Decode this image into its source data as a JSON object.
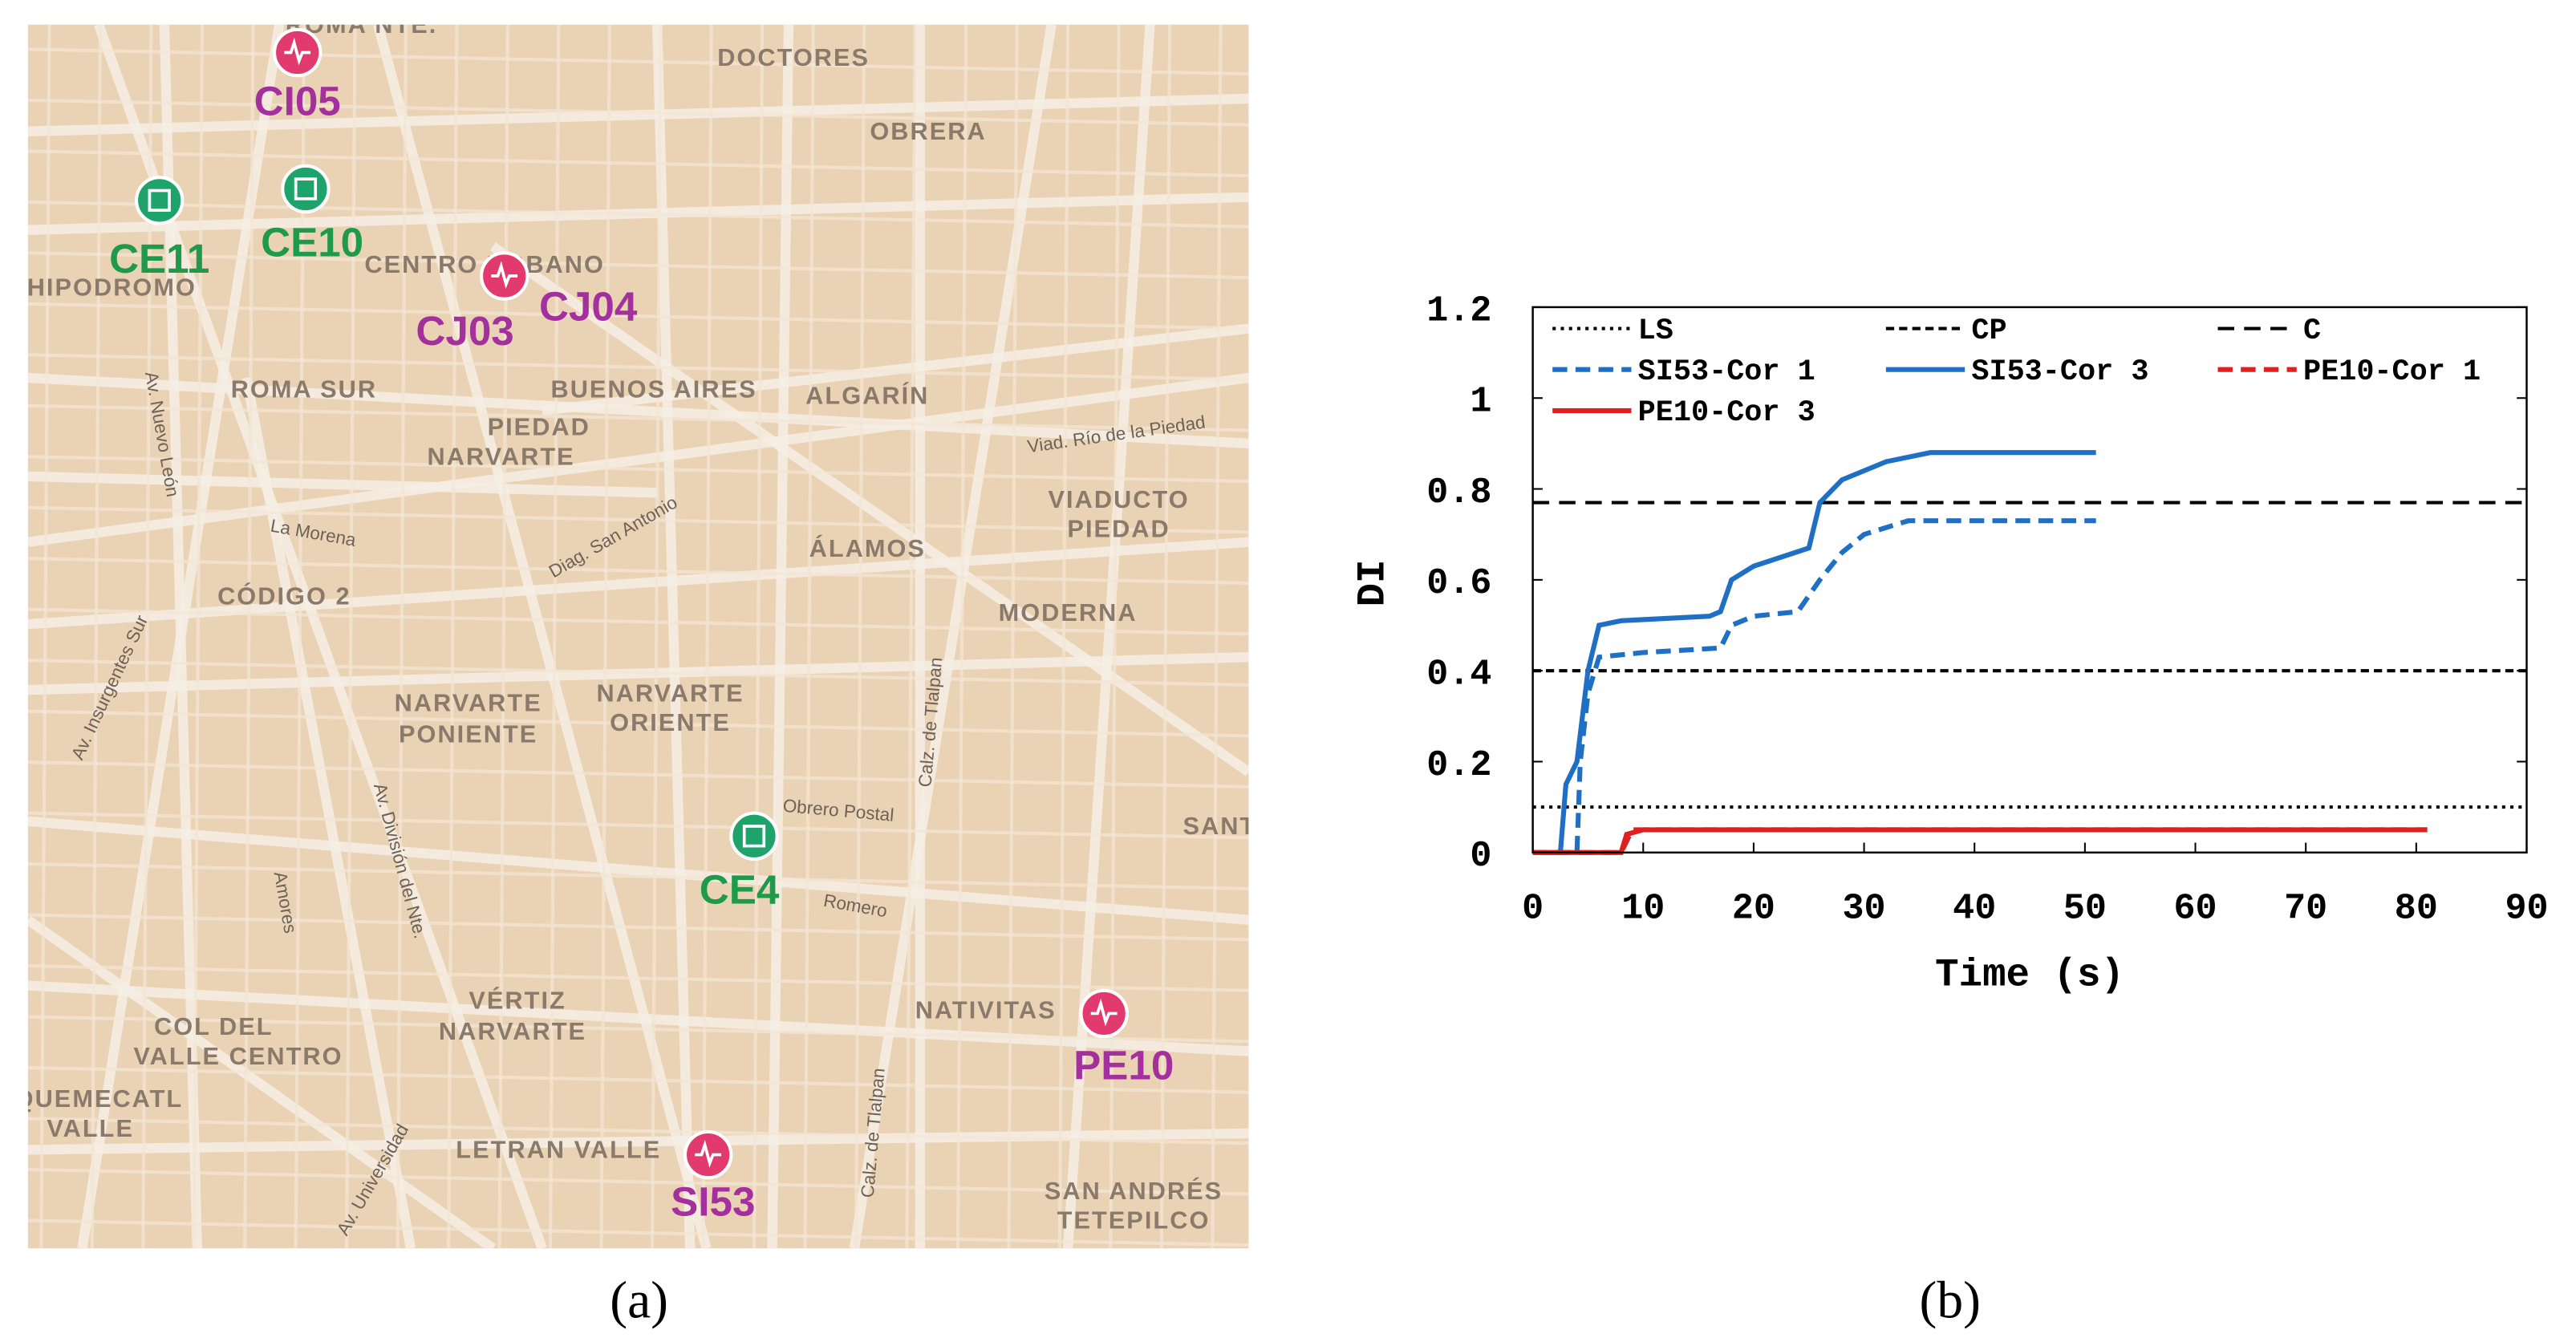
{
  "map": {
    "areas": [
      "ROMA NTE.",
      "DOCTORES",
      "OBRERA",
      "HIPODROMO",
      "CENTRO URBANO",
      "ROMA SUR",
      "BUENOS AIRES",
      "ALGARÍN",
      "PIEDAD",
      "NARVARTE",
      "VIADUCTO",
      "PIEDAD",
      "ÁLAMOS",
      "CÓDIGO 2",
      "MODERNA",
      "NARVARTE",
      "PONIENTE",
      "NARVARTE",
      "ORIENTE",
      "VÉRTIZ",
      "NARVARTE",
      "NATIVITAS",
      "COL DEL",
      "VALLE CENTRO",
      "LETRAN VALLE",
      "SAN ANDRÉS",
      "TETEPILCO",
      "SANTI",
      "QUEMECATL",
      "VALLE"
    ],
    "streets": [
      "Av. Insurgentes Sur",
      "Calz. de Tlalpan",
      "Viad. Río de la Piedad",
      "Diag. San Antonio",
      "La Morena",
      "Av. Universidad",
      "Av. División del Nte.",
      "Amores",
      "Romero",
      "Obrero Postal",
      "Av. Nuevo León",
      "Calz. de Tlalpan"
    ],
    "stations": [
      {
        "label": "CI05",
        "color": "#a3309c",
        "marker_color": "#e23a6e"
      },
      {
        "label": "CE11",
        "color": "#1e9a4a",
        "marker_color": "#1ea36a"
      },
      {
        "label": "CE10",
        "color": "#1e9a4a",
        "marker_color": "#1ea36a"
      },
      {
        "label": "CJ03",
        "color": "#a3309c",
        "marker_color": "#e23a6e"
      },
      {
        "label": "CJ04",
        "color": "#a3309c",
        "marker_color": "#e23a6e"
      },
      {
        "label": "CE4",
        "color": "#1e9a4a",
        "marker_color": "#1ea36a"
      },
      {
        "label": "PE10",
        "color": "#a3309c",
        "marker_color": "#e23a6e"
      },
      {
        "label": "SI53",
        "color": "#a3309c",
        "marker_color": "#e23a6e"
      }
    ]
  },
  "chart_data": {
    "type": "line",
    "xlabel": "Time (s)",
    "ylabel": "DI",
    "xlim": [
      0,
      90
    ],
    "xticks": [
      0,
      10,
      20,
      30,
      40,
      50,
      60,
      70,
      80,
      90
    ],
    "ylim": [
      0,
      1.2
    ],
    "yticks": [
      0,
      0.2,
      0.4,
      0.6,
      0.8,
      1,
      1.2
    ],
    "series": [
      {
        "name": "LS",
        "color": "#000000",
        "line_style": "dotted",
        "x": [
          0,
          90
        ],
        "values": [
          0.1,
          0.1
        ]
      },
      {
        "name": "CP",
        "color": "#000000",
        "line_style": "dashed",
        "x": [
          0,
          90
        ],
        "values": [
          0.4,
          0.4
        ]
      },
      {
        "name": "C",
        "color": "#000000",
        "line_style": "long-dashed",
        "x": [
          0,
          90
        ],
        "values": [
          0.77,
          0.77
        ]
      },
      {
        "name": "SI53-Cor 1",
        "color": "#1f6fc5",
        "line_style": "thick-dashed",
        "x": [
          0,
          4,
          4.3,
          5,
          6,
          10,
          17,
          18,
          20,
          24,
          26,
          28,
          30,
          34,
          51
        ],
        "values": [
          0,
          0,
          0.2,
          0.35,
          0.43,
          0.44,
          0.45,
          0.5,
          0.52,
          0.53,
          0.6,
          0.66,
          0.7,
          0.73,
          0.73
        ]
      },
      {
        "name": "SI53-Cor 3",
        "color": "#1f6fc5",
        "line_style": "solid",
        "x": [
          0,
          2.5,
          3,
          4,
          5,
          6,
          8,
          16,
          17,
          18,
          20,
          25,
          26,
          28,
          32,
          36,
          51
        ],
        "values": [
          0,
          0,
          0.15,
          0.2,
          0.4,
          0.5,
          0.51,
          0.52,
          0.53,
          0.6,
          0.63,
          0.67,
          0.77,
          0.82,
          0.86,
          0.88,
          0.88
        ]
      },
      {
        "name": "PE10-Cor 1",
        "color": "#e02020",
        "line_style": "thick-dashed",
        "x": [
          0,
          8,
          9,
          81
        ],
        "values": [
          0,
          0,
          0.05,
          0.05
        ]
      },
      {
        "name": "PE10-Cor 3",
        "color": "#e02020",
        "line_style": "solid",
        "x": [
          0,
          8,
          8.5,
          10,
          81
        ],
        "values": [
          0,
          0,
          0.04,
          0.05,
          0.05
        ]
      }
    ]
  },
  "captions": [
    "(a)",
    "(b)"
  ]
}
